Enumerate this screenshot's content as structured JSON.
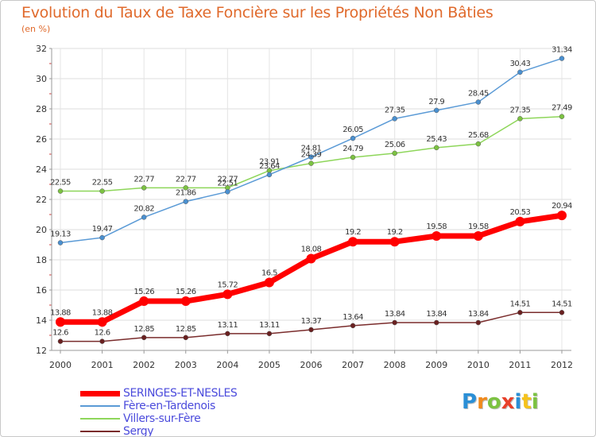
{
  "title": "Evolution du Taux de Taxe Foncière sur les Propriétés Non Bâties",
  "subtitle": "(en %)",
  "logo": {
    "text": "Proxiti",
    "letters": [
      {
        "ch": "P",
        "color": "#2a8fd6"
      },
      {
        "ch": "r",
        "color": "#f08a1c"
      },
      {
        "ch": "o",
        "color": "#7cc242"
      },
      {
        "ch": "x",
        "color": "#e8402a"
      },
      {
        "ch": "i",
        "color": "#2a8fd6"
      },
      {
        "ch": "t",
        "color": "#f5c21b"
      },
      {
        "ch": "i",
        "color": "#7cc242"
      }
    ]
  },
  "chart_data": {
    "type": "line",
    "title": "Evolution du Taux de Taxe Foncière sur les Propriétés Non Bâties",
    "ylabel": "(en %)",
    "xlabel": "",
    "x": [
      "2000",
      "2001",
      "2002",
      "2003",
      "2004",
      "2005",
      "2006",
      "2007",
      "2008",
      "2009",
      "2010",
      "2011",
      "2012"
    ],
    "ylim": [
      12,
      32
    ],
    "yticks": [
      12,
      14,
      16,
      18,
      20,
      22,
      24,
      26,
      28,
      30,
      32
    ],
    "grid": true,
    "legend_position": "bottom-left",
    "series": [
      {
        "name": "SERINGES-ET-NESLES",
        "color": "#ff0000",
        "values": [
          13.88,
          13.88,
          15.26,
          15.26,
          15.72,
          16.5,
          18.08,
          19.2,
          19.2,
          19.58,
          19.58,
          20.53,
          20.94
        ],
        "labels": [
          "13.88",
          "13.88",
          "15.26",
          "15.26",
          "15.72",
          "16.5",
          "18.08",
          "19.2",
          "19.2",
          "19.58",
          "19.58",
          "20.53",
          "20.94"
        ]
      },
      {
        "name": "Fère-en-Tardenois",
        "color": "#5a9ad6",
        "values": [
          19.13,
          19.47,
          20.82,
          21.86,
          22.51,
          23.64,
          24.81,
          26.05,
          27.35,
          27.9,
          28.45,
          30.43,
          31.34
        ],
        "labels": [
          "19.13",
          "19.47",
          "20.82",
          "21.86",
          "22.51",
          "23.64",
          "24.81",
          "26.05",
          "27.35",
          "27.9",
          "28.45",
          "30.43",
          "31.34"
        ]
      },
      {
        "name": "Villers-sur-Fère",
        "color": "#8ed65a",
        "values": [
          22.55,
          22.55,
          22.77,
          22.77,
          22.77,
          23.91,
          24.39,
          24.79,
          25.06,
          25.43,
          25.68,
          27.35,
          27.49
        ],
        "labels": [
          "22.55",
          "22.55",
          "22.77",
          "22.77",
          "22.77",
          "23.91",
          "24.39",
          "24.79",
          "25.06",
          "25.43",
          "25.68",
          "27.35",
          "27.49"
        ]
      },
      {
        "name": "Sergy",
        "color": "#7a2c2c",
        "values": [
          12.6,
          12.6,
          12.85,
          12.85,
          13.11,
          13.11,
          13.37,
          13.64,
          13.84,
          13.84,
          13.84,
          14.51,
          14.51
        ],
        "labels": [
          "12.6",
          "12.6",
          "12.85",
          "12.85",
          "13.11",
          "13.11",
          "13.37",
          "13.64",
          "13.84",
          "13.84",
          "13.84",
          "14.51",
          "14.51"
        ]
      }
    ]
  }
}
